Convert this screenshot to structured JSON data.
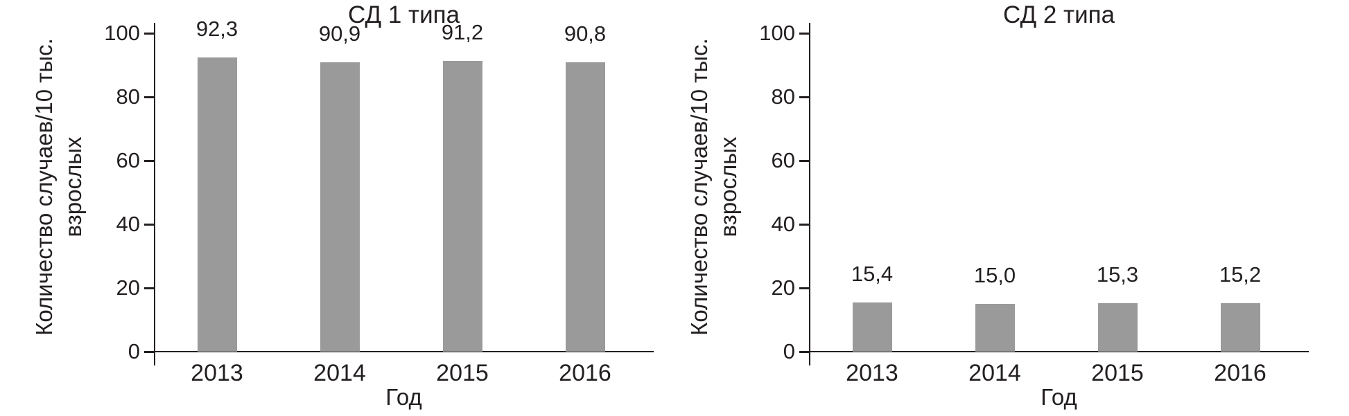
{
  "figure": {
    "background": "#ffffff",
    "text_color": "#231f20",
    "axis_color": "#231f20",
    "bar_color": "#9a9a9a"
  },
  "chart_data": [
    {
      "type": "bar",
      "title": "СД 1 типа",
      "xlabel": "Год",
      "ylabel": "Количество случаев/10 тыс. взрослых",
      "ylabel_lines": [
        "Количество случаев/10 тыс.",
        "взрослых"
      ],
      "categories": [
        "2013",
        "2014",
        "2015",
        "2016"
      ],
      "values": [
        92.3,
        90.9,
        91.2,
        90.8
      ],
      "value_labels": [
        "92,3",
        "90,9",
        "91,2",
        "90,8"
      ],
      "yticks": [
        0,
        20,
        40,
        60,
        80,
        100
      ],
      "ylim": [
        0,
        100
      ],
      "grid": false,
      "legend": null
    },
    {
      "type": "bar",
      "title": "СД 2 типа",
      "xlabel": "Год",
      "ylabel": "Количество случаев/10 тыс. взрослых",
      "ylabel_lines": [
        "Количество случаев/10 тыс.",
        "взрослых"
      ],
      "categories": [
        "2013",
        "2014",
        "2015",
        "2016"
      ],
      "values": [
        15.4,
        15.0,
        15.3,
        15.2
      ],
      "value_labels": [
        "15,4",
        "15,0",
        "15,3",
        "15,2"
      ],
      "yticks": [
        0,
        20,
        40,
        60,
        80,
        100
      ],
      "ylim": [
        0,
        100
      ],
      "grid": false,
      "legend": null
    }
  ]
}
